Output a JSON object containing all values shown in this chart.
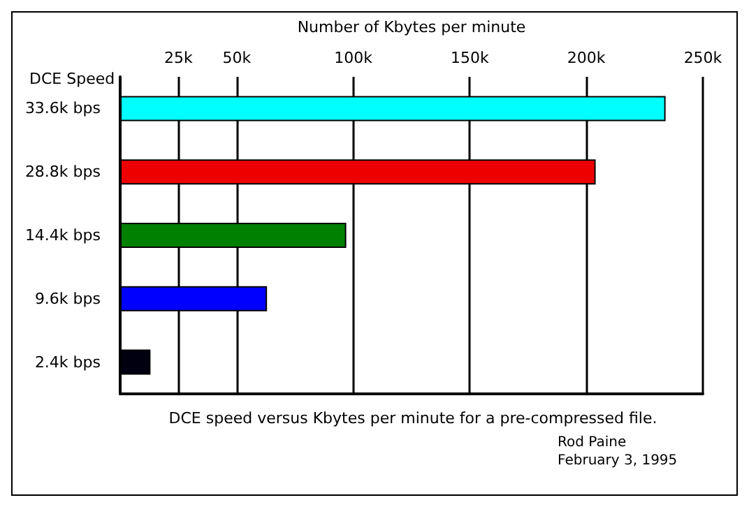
{
  "chart_data": {
    "type": "bar",
    "orientation": "horizontal",
    "xlabel": "Number of Kbytes per minute",
    "ylabel": "DCE Speed",
    "categories": [
      "33.6k bps",
      "28.8k bps",
      "14.4k bps",
      "9.6k bps",
      "2.4k bps"
    ],
    "values": [
      234000,
      204000,
      97000,
      63000,
      13000
    ],
    "colors": [
      "#00ffff",
      "#ee0000",
      "#008000",
      "#0000ff",
      "#000010"
    ],
    "xlim": [
      0,
      250000
    ],
    "xticks": [
      {
        "value": 25000,
        "label": "25k"
      },
      {
        "value": 50000,
        "label": "50k"
      },
      {
        "value": 100000,
        "label": "100k"
      },
      {
        "value": 150000,
        "label": "150k"
      },
      {
        "value": 200000,
        "label": "200k"
      },
      {
        "value": 250000,
        "label": "250k"
      }
    ],
    "grid": "x",
    "annotations": [
      "DCE speed versus Kbytes per minute for a pre-compressed file.",
      "Rod Paine",
      "February 3, 1995"
    ]
  }
}
